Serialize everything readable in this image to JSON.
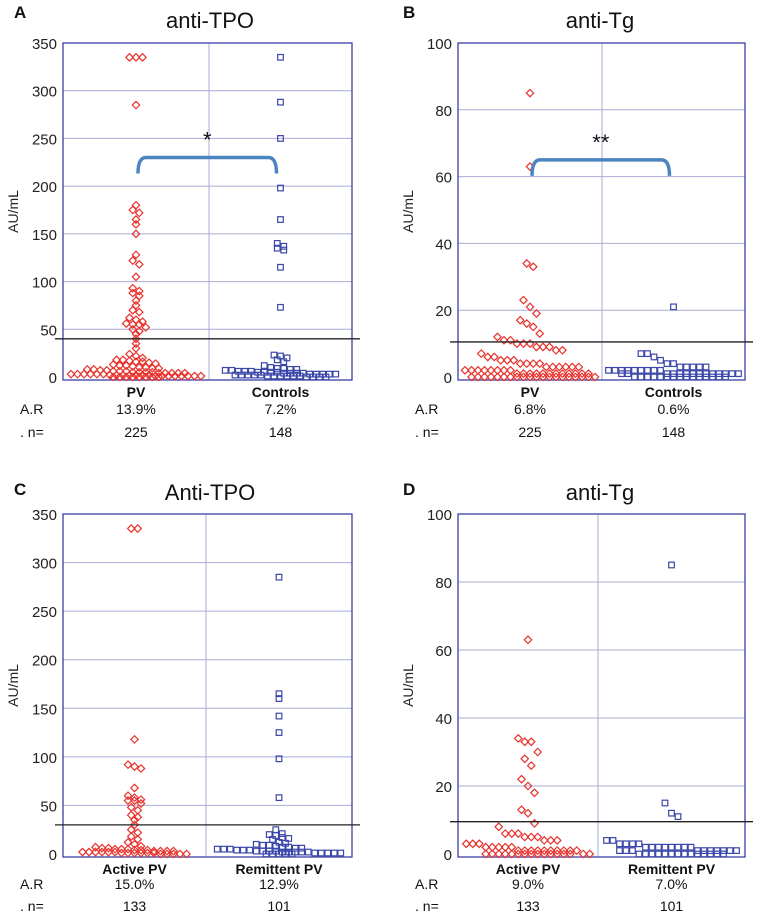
{
  "colors": {
    "red": "#e8322c",
    "blue": "#3a46a8",
    "frame": "#3a3ea4",
    "grid": "#a9abd6",
    "threshold": "#222222",
    "bracket": "#4a85c2"
  },
  "chart_data": [
    {
      "type": "scatter",
      "panel": "A",
      "title": "anti-TPO",
      "ylabel": "AU/mL",
      "ylim": [
        0,
        350
      ],
      "yticks": [
        0,
        50,
        100,
        150,
        200,
        250,
        300,
        350
      ],
      "threshold": 40,
      "significance": "*",
      "bracket_y": 230,
      "row_labels": {
        "ar": "A.R",
        "n": ". n="
      },
      "groups": [
        {
          "name": "PV",
          "ar": "13.9%",
          "n": "225",
          "series_color": "red",
          "values": [
            335,
            335,
            335,
            285,
            180,
            175,
            172,
            165,
            160,
            150,
            128,
            122,
            118,
            105,
            93,
            90,
            88,
            85,
            80,
            75,
            70,
            68,
            62,
            60,
            58,
            56,
            55,
            55,
            52,
            50,
            48,
            45,
            40,
            35,
            30,
            24,
            22,
            20,
            18,
            18,
            17,
            16,
            16,
            15,
            14,
            13,
            12,
            12,
            11,
            10,
            10,
            9,
            9,
            8,
            8,
            7,
            7,
            6,
            6,
            6,
            5,
            5,
            5,
            5,
            4,
            4,
            4,
            4,
            4,
            3,
            3,
            3,
            3,
            3,
            3,
            2,
            2,
            2,
            2,
            2,
            2,
            2,
            1,
            1,
            1,
            1,
            1,
            1,
            1,
            1,
            0,
            0,
            0,
            0,
            0,
            0,
            0,
            0
          ]
        },
        {
          "name": "Controls",
          "ar": "7.2%",
          "n": "148",
          "series_color": "blue",
          "values": [
            335,
            288,
            250,
            198,
            165,
            140,
            137,
            135,
            133,
            115,
            73,
            23,
            22,
            20,
            18,
            16,
            12,
            10,
            9,
            9,
            8,
            8,
            7,
            7,
            6,
            6,
            6,
            5,
            5,
            5,
            5,
            4,
            4,
            4,
            4,
            3,
            3,
            3,
            3,
            3,
            2,
            2,
            2,
            2,
            2,
            1,
            1,
            1,
            1,
            1,
            1,
            0,
            0,
            0,
            0
          ]
        }
      ]
    },
    {
      "type": "scatter",
      "panel": "B",
      "title": "anti-Tg",
      "ylabel": "AU/mL",
      "ylim": [
        0,
        100
      ],
      "yticks": [
        0,
        20,
        40,
        60,
        80,
        100
      ],
      "threshold": 10.5,
      "significance": "**",
      "bracket_y": 65,
      "row_labels": {
        "ar": "A.R",
        "n": ". n="
      },
      "groups": [
        {
          "name": "PV",
          "ar": "6.8%",
          "n": "225",
          "series_color": "red",
          "values": [
            85,
            63,
            34,
            33,
            23,
            21,
            19,
            17,
            16,
            15,
            13,
            12,
            11,
            11,
            10,
            10,
            10,
            9,
            9,
            9,
            8,
            8,
            7,
            6,
            6,
            5,
            5,
            5,
            4,
            4,
            4,
            4,
            3,
            3,
            3,
            3,
            3,
            3,
            2,
            2,
            2,
            2,
            2,
            2,
            2,
            2,
            1,
            1,
            1,
            1,
            1,
            1,
            1,
            1,
            1,
            1,
            1,
            1,
            0,
            0,
            0,
            0,
            0,
            0,
            0,
            0,
            0,
            0,
            0,
            0,
            0,
            0,
            0,
            0,
            0,
            0,
            0,
            0
          ]
        },
        {
          "name": "Controls",
          "ar": "0.6%",
          "n": "148",
          "series_color": "blue",
          "values": [
            21,
            7,
            7,
            6,
            5,
            4,
            4,
            3,
            3,
            3,
            3,
            3,
            2,
            2,
            2,
            2,
            2,
            2,
            2,
            2,
            2,
            1,
            1,
            1,
            1,
            1,
            1,
            1,
            1,
            1,
            1,
            1,
            1,
            1,
            1,
            0,
            0,
            0,
            0,
            0,
            0,
            0,
            0,
            0,
            0,
            0,
            0,
            0,
            0,
            0
          ]
        }
      ]
    },
    {
      "type": "scatter",
      "panel": "C",
      "title": "Anti-TPO",
      "ylabel": "AU/mL",
      "ylim": [
        0,
        350
      ],
      "yticks": [
        0,
        50,
        100,
        150,
        200,
        250,
        300,
        350
      ],
      "threshold": 30,
      "row_labels": {
        "ar": "A.R",
        "n": ". n="
      },
      "groups": [
        {
          "name": "Active PV",
          "ar": "15.0%",
          "n": "133",
          "series_color": "red",
          "values": [
            335,
            335,
            118,
            92,
            90,
            88,
            68,
            60,
            58,
            56,
            55,
            55,
            52,
            48,
            45,
            40,
            38,
            35,
            30,
            25,
            22,
            18,
            15,
            12,
            10,
            8,
            7,
            6,
            6,
            5,
            5,
            5,
            4,
            4,
            4,
            3,
            3,
            3,
            3,
            2,
            2,
            2,
            2,
            2,
            2,
            1,
            1,
            1,
            1,
            1,
            1,
            0,
            0,
            0,
            0,
            0
          ]
        },
        {
          "name": "Remittent PV",
          "ar": "12.9%",
          "n": "101",
          "series_color": "blue",
          "values": [
            285,
            165,
            160,
            142,
            125,
            98,
            58,
            25,
            21,
            20,
            19,
            17,
            16,
            15,
            12,
            11,
            10,
            9,
            9,
            8,
            7,
            7,
            6,
            6,
            5,
            5,
            5,
            4,
            4,
            4,
            3,
            3,
            3,
            3,
            2,
            2,
            2,
            2,
            2,
            1,
            1,
            1,
            1,
            1,
            0,
            0,
            0,
            0,
            0
          ]
        }
      ]
    },
    {
      "type": "scatter",
      "panel": "D",
      "title": "anti-Tg",
      "ylabel": "AU/mL",
      "ylim": [
        0,
        100
      ],
      "yticks": [
        0,
        20,
        40,
        60,
        80,
        100
      ],
      "threshold": 9.5,
      "row_labels": {
        "ar": "A.R",
        "n": ". n="
      },
      "groups": [
        {
          "name": "Active PV",
          "ar": "9.0%",
          "n": "133",
          "series_color": "red",
          "values": [
            63,
            34,
            33,
            33,
            30,
            28,
            26,
            22,
            20,
            18,
            13,
            12,
            9,
            8,
            6,
            6,
            6,
            5,
            5,
            5,
            4,
            4,
            4,
            3,
            3,
            3,
            2,
            2,
            2,
            2,
            2,
            1,
            1,
            1,
            1,
            1,
            1,
            1,
            1,
            1,
            1,
            0,
            0,
            0,
            0,
            0,
            0,
            0,
            0,
            0,
            0,
            0,
            0,
            0,
            0,
            0,
            0
          ]
        },
        {
          "name": "Remittent PV",
          "ar": "7.0%",
          "n": "101",
          "series_color": "blue",
          "values": [
            85,
            15,
            12,
            11,
            4,
            4,
            3,
            3,
            3,
            3,
            2,
            2,
            2,
            2,
            2,
            2,
            2,
            2,
            1,
            1,
            1,
            1,
            1,
            1,
            1,
            1,
            1,
            1,
            0,
            0,
            0,
            0,
            0,
            0,
            0,
            0,
            0,
            0,
            0,
            0,
            0,
            0
          ]
        }
      ]
    }
  ]
}
